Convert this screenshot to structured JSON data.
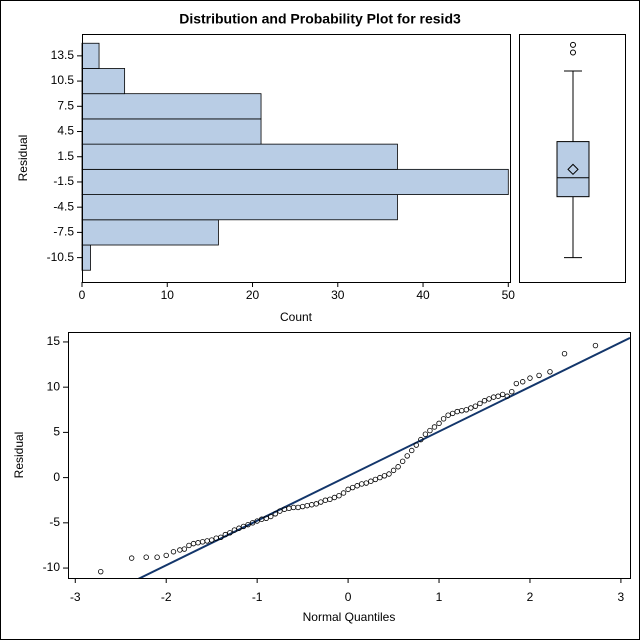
{
  "chart_data": [
    {
      "type": "histogram",
      "title": "Distribution and Probability Plot for resid3",
      "orientation": "horizontal",
      "bins": [
        -12,
        -9,
        -6,
        -3,
        0,
        3,
        6,
        9,
        12,
        15
      ],
      "values": [
        1,
        16,
        37,
        50,
        37,
        21,
        21,
        5,
        2
      ],
      "xlabel": "Count",
      "ylabel": "Residual",
      "xlim": [
        0,
        50.2
      ],
      "xticks": [
        0,
        10,
        20,
        30,
        40,
        50
      ],
      "ylim": [
        -13.4,
        16.1
      ],
      "yticks": [
        -10.5,
        -7.5,
        -4.5,
        -1.5,
        1.5,
        4.5,
        7.5,
        10.5,
        13.5
      ],
      "color": "#b9cde5"
    },
    {
      "type": "box",
      "min": -10.5,
      "q1": -3.25,
      "median": -1.0,
      "q3": 3.3,
      "max": 11.7,
      "mean": 0,
      "outliers": [
        13.9,
        14.8
      ],
      "ylim": [
        -13.4,
        16.1
      ],
      "color": "#b9cde5"
    },
    {
      "type": "scatter",
      "xlabel": "Normal Quantiles",
      "ylabel": "Residual",
      "x": [
        -2.72,
        -2.38,
        -2.22,
        -2.1,
        -2.0,
        -1.92,
        -1.85,
        -1.8,
        -1.75,
        -1.7,
        -1.65,
        -1.6,
        -1.55,
        -1.5,
        -1.45,
        -1.4,
        -1.35,
        -1.3,
        -1.25,
        -1.2,
        -1.15,
        -1.1,
        -1.05,
        -1.0,
        -0.95,
        -0.9,
        -0.85,
        -0.8,
        -0.75,
        -0.7,
        -0.65,
        -0.6,
        -0.55,
        -0.5,
        -0.45,
        -0.4,
        -0.35,
        -0.3,
        -0.25,
        -0.2,
        -0.15,
        -0.1,
        -0.05,
        0,
        0.05,
        0.1,
        0.15,
        0.2,
        0.25,
        0.3,
        0.35,
        0.4,
        0.45,
        0.5,
        0.55,
        0.6,
        0.65,
        0.7,
        0.75,
        0.8,
        0.85,
        0.9,
        0.95,
        1.0,
        1.05,
        1.1,
        1.15,
        1.2,
        1.25,
        1.3,
        1.35,
        1.4,
        1.45,
        1.5,
        1.55,
        1.6,
        1.65,
        1.7,
        1.75,
        1.8,
        1.85,
        1.92,
        2.0,
        2.1,
        2.22,
        2.38,
        2.72
      ],
      "y": [
        -10.4,
        -8.9,
        -8.8,
        -8.8,
        -8.6,
        -8.2,
        -8.0,
        -7.9,
        -7.5,
        -7.3,
        -7.2,
        -7.1,
        -7.0,
        -6.9,
        -6.7,
        -6.6,
        -6.3,
        -6.1,
        -5.8,
        -5.6,
        -5.4,
        -5.2,
        -5.0,
        -4.8,
        -4.6,
        -4.5,
        -4.3,
        -4.0,
        -3.7,
        -3.5,
        -3.4,
        -3.3,
        -3.3,
        -3.2,
        -3.1,
        -3.0,
        -2.9,
        -2.7,
        -2.5,
        -2.4,
        -2.2,
        -2.0,
        -1.7,
        -1.3,
        -1.1,
        -0.9,
        -0.7,
        -0.6,
        -0.4,
        -0.2,
        0,
        0.2,
        0.4,
        0.8,
        1.2,
        1.8,
        2.4,
        3.0,
        3.6,
        4.2,
        4.8,
        5.2,
        5.6,
        6.0,
        6.5,
        6.9,
        7.1,
        7.3,
        7.4,
        7.5,
        7.7,
        7.9,
        8.2,
        8.5,
        8.7,
        8.9,
        9.0,
        9.2,
        9.0,
        9.5,
        10.4,
        10.6,
        11.0,
        11.3,
        11.7,
        13.7,
        14.6
      ],
      "xlim": [
        -3.08,
        3.1
      ],
      "xticks": [
        -3,
        -2,
        -1,
        0,
        1,
        2,
        3
      ],
      "ylim": [
        -11.1,
        16.1
      ],
      "yticks": [
        -10,
        -5,
        0,
        5,
        10,
        15
      ],
      "color": "#000000",
      "reference_line": {
        "intercept": 0.17,
        "slope": 4.93,
        "color": "#13366b"
      }
    }
  ]
}
